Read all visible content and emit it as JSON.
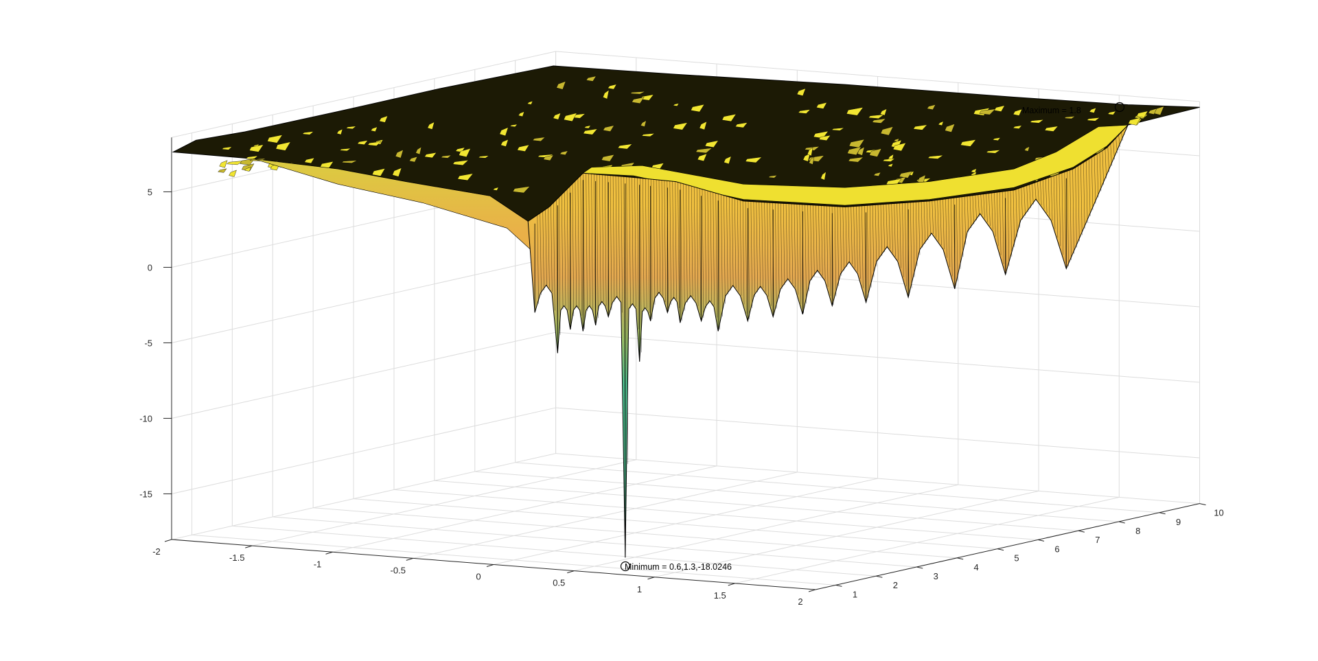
{
  "chart_data": {
    "type": "surface",
    "title": "",
    "xlabel": "",
    "ylabel": "",
    "zlabel": "",
    "xlim": [
      -2,
      2
    ],
    "ylim": [
      0.5,
      10
    ],
    "zlim": [
      -18.0246,
      8.6
    ],
    "grid": true,
    "colormap": "parula (yellow top, green valleys)",
    "x_ticks": [
      "-2",
      "-1.5",
      "-1",
      "-0.5",
      "0",
      "0.5",
      "1",
      "1.5",
      "2"
    ],
    "y_ticks": [
      "1",
      "2",
      "3",
      "4",
      "5",
      "6",
      "7",
      "8",
      "9",
      "10"
    ],
    "z_ticks": [
      "5",
      "0",
      "-5",
      "-10",
      "-15"
    ],
    "annotations": [
      {
        "name": "minimum",
        "x": 0.6,
        "y": 1.3,
        "z": -18.0246,
        "label": "Minimum = 0.6,1.3,-18.0246"
      },
      {
        "name": "maximum",
        "x": 1.8,
        "label": "Maximum = 1.8"
      }
    ],
    "colors": {
      "surface_top": "#f2e632",
      "surface_mid": "#e8b04a",
      "surface_low": "#4fbf8f",
      "mesh": "#000000",
      "grid": "#dcdcdc",
      "axis": "#262626"
    }
  }
}
